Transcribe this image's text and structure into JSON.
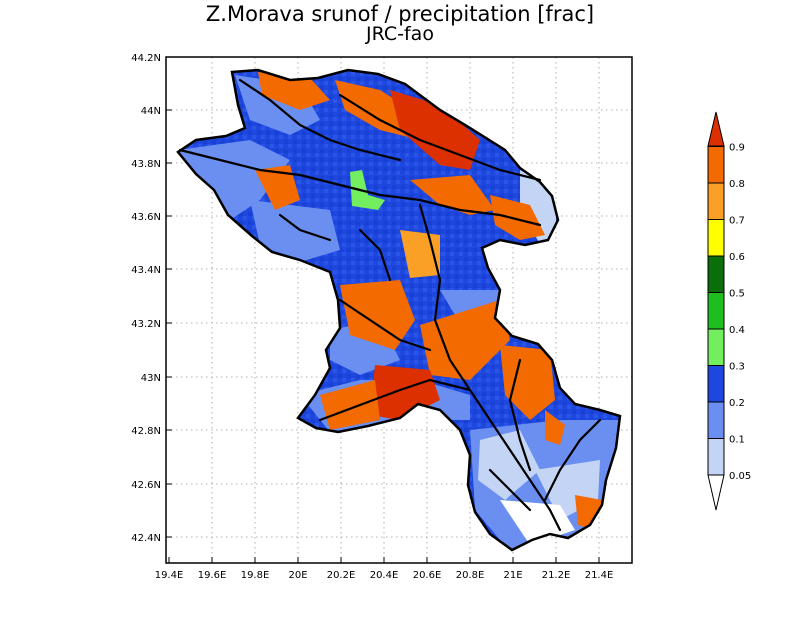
{
  "title": "Z.Morava srunof / precipitation [frac]",
  "subtitle": "JRC-fao",
  "map": {
    "lon_ticks": [
      "19.4E",
      "19.6E",
      "19.8E",
      "20E",
      "20.2E",
      "20.4E",
      "20.6E",
      "20.8E",
      "21E",
      "21.2E",
      "21.4E"
    ],
    "lat_ticks": [
      "44.2N",
      "44N",
      "43.8N",
      "43.6N",
      "43.4N",
      "43.2N",
      "43N",
      "42.8N",
      "42.6N",
      "42.4N"
    ],
    "lon_range": [
      19.4,
      21.1
    ],
    "lat_range": [
      42.3,
      44.2
    ],
    "grid": "dotted"
  },
  "colorbar": {
    "labels": [
      "0.05",
      "0.1",
      "0.2",
      "0.3",
      "0.4",
      "0.5",
      "0.6",
      "0.7",
      "0.8",
      "0.9"
    ],
    "colors": [
      "#ffffff",
      "#c4d4f5",
      "#6b8ff0",
      "#1d47de",
      "#73ee5e",
      "#1ebe1e",
      "#0a6e0a",
      "#ffff00",
      "#fba026",
      "#f26a00",
      "#dc3000"
    ]
  }
}
